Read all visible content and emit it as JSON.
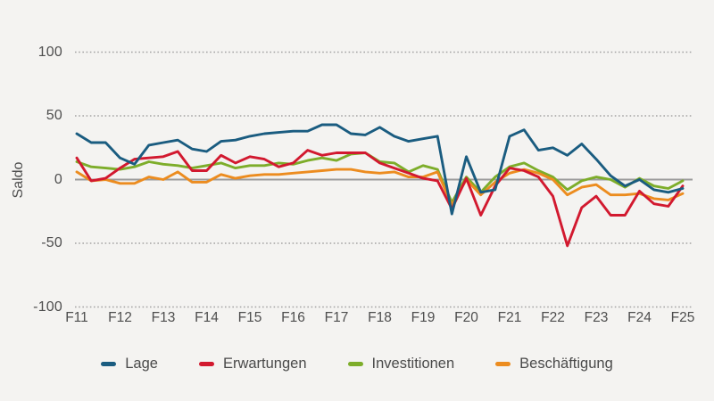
{
  "chart_data": {
    "type": "line",
    "title": "",
    "ylabel": "Saldo",
    "xlabel": "",
    "grid": "dotted-horizontal",
    "legend_position": "bottom",
    "points_per_year": 3,
    "ylim": [
      -115,
      130
    ],
    "yticks": [
      100,
      50,
      0,
      -50,
      -100
    ],
    "ytick_labels": [
      "100",
      "50",
      "0",
      "-50",
      "-100"
    ],
    "x_tick_labels": [
      "F11",
      "F12",
      "F13",
      "F14",
      "F15",
      "F16",
      "F17",
      "F18",
      "F19",
      "F20",
      "F21",
      "F22",
      "F23",
      "F24",
      "F25"
    ],
    "series": [
      {
        "name": "Lage",
        "color": "#1a5c80",
        "values": [
          36,
          29,
          29,
          17,
          12,
          27,
          29,
          31,
          24,
          22,
          30,
          31,
          34,
          36,
          37,
          38,
          38,
          43,
          43,
          36,
          35,
          41,
          34,
          30,
          32,
          34,
          -27,
          18,
          -10,
          -8,
          34,
          39,
          23,
          25,
          19,
          28,
          16,
          3,
          -5,
          0,
          -8,
          -10,
          -7
        ]
      },
      {
        "name": "Erwartungen",
        "color": "#d2192f",
        "values": [
          17,
          -1,
          1,
          9,
          16,
          17,
          18,
          22,
          7,
          7,
          19,
          13,
          18,
          16,
          10,
          13,
          23,
          19,
          21,
          21,
          21,
          13,
          9,
          5,
          1,
          -1,
          -23,
          1,
          -28,
          -5,
          9,
          7,
          2,
          -13,
          -52,
          -22,
          -13,
          -28,
          -28,
          -9,
          -19,
          -21,
          -5
        ]
      },
      {
        "name": "Investitionen",
        "color": "#7dad2a",
        "values": [
          14,
          10,
          9,
          8,
          10,
          14,
          12,
          11,
          9,
          11,
          13,
          9,
          11,
          11,
          13,
          12,
          15,
          17,
          15,
          20,
          21,
          14,
          13,
          6,
          11,
          8,
          -18,
          2,
          -10,
          2,
          10,
          13,
          7,
          2,
          -8,
          -1,
          2,
          0,
          -6,
          1,
          -5,
          -7,
          -1
        ]
      },
      {
        "name": "Beschäftigung",
        "color": "#ec8c1f",
        "values": [
          6,
          -1,
          0,
          -3,
          -3,
          2,
          0,
          6,
          -2,
          -2,
          4,
          1,
          3,
          4,
          4,
          5,
          6,
          7,
          8,
          8,
          6,
          5,
          6,
          2,
          2,
          6,
          -20,
          0,
          -12,
          -2,
          5,
          8,
          5,
          0,
          -12,
          -6,
          -4,
          -12,
          -12,
          -11,
          -15,
          -16,
          -11
        ]
      }
    ]
  },
  "colors": {
    "background": "#f4f3f1",
    "zero_line": "#9b9b9b",
    "gridline": "#a3a3a3",
    "tick_text": "#4e4e4e"
  }
}
